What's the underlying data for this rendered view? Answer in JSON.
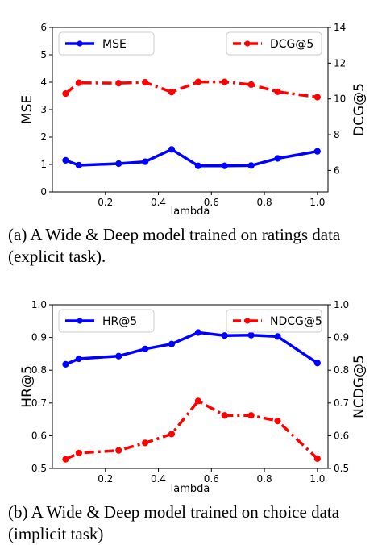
{
  "chart_data": [
    {
      "type": "line",
      "x": [
        0.05,
        0.1,
        0.25,
        0.35,
        0.45,
        0.55,
        0.65,
        0.75,
        0.85,
        1.0
      ],
      "xlabel": "lambda",
      "xticks": [
        "0.2",
        "0.4",
        "0.6",
        "0.8",
        "1.0"
      ],
      "left_axis": {
        "label": "MSE",
        "ylim": [
          0,
          6
        ],
        "ticks": [
          "0",
          "1",
          "2",
          "3",
          "4",
          "5",
          "6"
        ]
      },
      "right_axis": {
        "label": "DCG@5",
        "ylim": [
          4.8,
          14
        ],
        "ticks": [
          "6",
          "8",
          "10",
          "12",
          "14"
        ]
      },
      "series": [
        {
          "name": "MSE",
          "axis": "left",
          "color": "#0000ff",
          "style": "solid",
          "values": [
            1.15,
            0.97,
            1.03,
            1.1,
            1.55,
            0.95,
            0.95,
            0.96,
            1.22,
            1.48
          ]
        },
        {
          "name": "DCG@5",
          "axis": "right",
          "color": "#ff0000",
          "style": "dashdot",
          "values": [
            10.3,
            10.9,
            10.88,
            10.93,
            10.38,
            10.95,
            10.95,
            10.8,
            10.4,
            10.1
          ]
        }
      ],
      "legend": [
        "top-left",
        "top-right"
      ],
      "caption": "(a)  A Wide & Deep model trained on ratings data (explicit task)."
    },
    {
      "type": "line",
      "x": [
        0.05,
        0.1,
        0.25,
        0.35,
        0.45,
        0.55,
        0.65,
        0.75,
        0.85,
        1.0
      ],
      "xlabel": "lambda",
      "xticks": [
        "0.2",
        "0.4",
        "0.6",
        "0.8",
        "1.0"
      ],
      "left_axis": {
        "label": "HR@5",
        "ylim": [
          0.5,
          1.0
        ],
        "ticks": [
          "0.5",
          "0.6",
          "0.7",
          "0.8",
          "0.9",
          "1.0"
        ]
      },
      "right_axis": {
        "label": "NCDG@5",
        "ylim": [
          0.5,
          1.0
        ],
        "ticks": [
          "0.5",
          "0.6",
          "0.7",
          "0.8",
          "0.9",
          "1.0"
        ]
      },
      "series": [
        {
          "name": "HR@5",
          "axis": "left",
          "color": "#0000ff",
          "style": "solid",
          "values": [
            0.818,
            0.835,
            0.843,
            0.865,
            0.88,
            0.915,
            0.906,
            0.907,
            0.903,
            0.822
          ]
        },
        {
          "name": "NDCG@5",
          "axis": "right",
          "color": "#ff0000",
          "style": "dashdot",
          "values": [
            0.528,
            0.547,
            0.555,
            0.578,
            0.605,
            0.706,
            0.662,
            0.662,
            0.645,
            0.53
          ]
        }
      ],
      "legend": [
        "top-left",
        "top-right"
      ],
      "caption": "(b)  A Wide & Deep model trained on choice data (implicit task)"
    }
  ]
}
